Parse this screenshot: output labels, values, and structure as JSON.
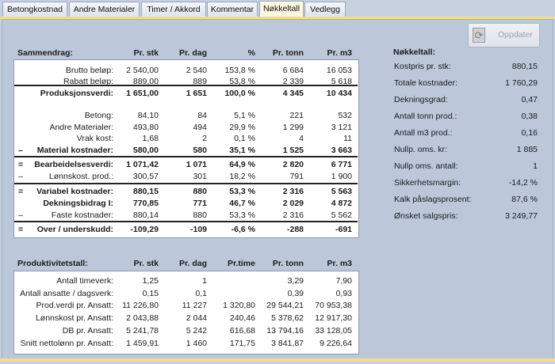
{
  "tabs": [
    "Betongkostnad",
    "Andre Materialer",
    "Timer / Akkord",
    "Kommentar",
    "Nøkkeltall",
    "Vedlegg"
  ],
  "active_tab": "Nøkkeltall",
  "update_button": {
    "label": "Oppdater",
    "icon": "refresh-icon"
  },
  "summary": {
    "title": "Sammendrag:",
    "columns": [
      "Pr. stk",
      "Pr. dag",
      "%",
      "Pr. tonn",
      "Pr. m3"
    ],
    "rows": [
      {
        "prefix": "",
        "label": "Brutto beløp:",
        "values": [
          "2 540,00",
          "2 540",
          "153,8 %",
          "6 684",
          "16 053"
        ]
      },
      {
        "prefix": "",
        "label": "Rabatt beløp:",
        "values": [
          "889,00",
          "889",
          "53,8 %",
          "2 339",
          "5 618"
        ]
      },
      {
        "prefix": "",
        "label": "Produksjonsverdi:",
        "values": [
          "1 651,00",
          "1 651",
          "100,0 %",
          "4 345",
          "10 434"
        ]
      },
      {
        "prefix": "",
        "label": "Betong:",
        "values": [
          "84,10",
          "84",
          "5,1 %",
          "221",
          "532"
        ]
      },
      {
        "prefix": "",
        "label": "Andre Materialer:",
        "values": [
          "493,80",
          "494",
          "29,9 %",
          "1 299",
          "3 121"
        ]
      },
      {
        "prefix": "",
        "label": "Vrak kost:",
        "values": [
          "1,68",
          "2",
          "0,1 %",
          "4",
          "11"
        ]
      },
      {
        "prefix": "–",
        "label": "Material kostnader:",
        "values": [
          "580,00",
          "580",
          "35,1 %",
          "1 525",
          "3 663"
        ]
      },
      {
        "prefix": "=",
        "label": "Bearbeidelsesverdi:",
        "values": [
          "1 071,42",
          "1 071",
          "64,9 %",
          "2 820",
          "6 771"
        ]
      },
      {
        "prefix": "–",
        "label": "Lønnskost. prod.:",
        "values": [
          "300,57",
          "301",
          "18,2 %",
          "791",
          "1 900"
        ]
      },
      {
        "prefix": "=",
        "label": "Variabel kostnader:",
        "values": [
          "880,15",
          "880",
          "53,3 %",
          "2 316",
          "5 563"
        ]
      },
      {
        "prefix": "",
        "label": "Dekningsbidrag I:",
        "values": [
          "770,85",
          "771",
          "46,7 %",
          "2 029",
          "4 872"
        ]
      },
      {
        "prefix": "–",
        "label": "Faste kostnader:",
        "values": [
          "880,14",
          "880",
          "53,3 %",
          "2 316",
          "5 562"
        ]
      },
      {
        "prefix": "=",
        "label": "Over / underskudd:",
        "values": [
          "-109,29",
          "-109",
          "-6,6 %",
          "-288",
          "-691"
        ]
      }
    ]
  },
  "productivity": {
    "title": "Produktivitetstall:",
    "columns": [
      "Pr. stk",
      "Pr. dag",
      "Pr.time",
      "Pr. tonn",
      "Pr. m3"
    ],
    "rows": [
      {
        "label": "Antall timeverk:",
        "values": [
          "1,25",
          "1",
          "",
          "3,29",
          "7,90"
        ]
      },
      {
        "label": "Antall ansatte / dagsverk:",
        "values": [
          "0,15",
          "0,1",
          "",
          "0,39",
          "0,93"
        ]
      },
      {
        "label": "Prod.verdi pr. Ansatt:",
        "values": [
          "11 226,80",
          "11 227",
          "1 320,80",
          "29 544,21",
          "70 953,38"
        ]
      },
      {
        "label": "Lønnskost pr. Ansatt:",
        "values": [
          "2 043,88",
          "2 044",
          "240,46",
          "5 378,62",
          "12 917,30"
        ]
      },
      {
        "label": "DB pr. Ansatt:",
        "values": [
          "5 241,78",
          "5 242",
          "616,68",
          "13 794,16",
          "33 128,05"
        ]
      },
      {
        "label": "Snitt nettolønn pr. Ansatt:",
        "values": [
          "1 459,91",
          "1 460",
          "171,75",
          "3 841,87",
          "9 226,64"
        ]
      }
    ]
  },
  "keyfigures": {
    "title": "Nøkkeltall:",
    "items": [
      {
        "label": "Kostpris pr. stk:",
        "value": "880,15"
      },
      {
        "label": "Totale kostnader:",
        "value": "1 760,29"
      },
      {
        "label": "Dekningsgrad:",
        "value": "0,47"
      },
      {
        "label": "Antall tonn prod.:",
        "value": "0,38"
      },
      {
        "label": "Antall m3 prod.:",
        "value": "0,16"
      },
      {
        "label": "Nullp. oms. kr:",
        "value": "1 885"
      },
      {
        "label": "Nullp oms. antall:",
        "value": "1"
      },
      {
        "label": "Sikkerhetsmargin:",
        "value": "-14,2 %"
      },
      {
        "label": "Kalk påslagsprosent:",
        "value": "87,6 %"
      },
      {
        "label": "Ønsket salgspris:",
        "value": "3 249,77"
      }
    ]
  }
}
